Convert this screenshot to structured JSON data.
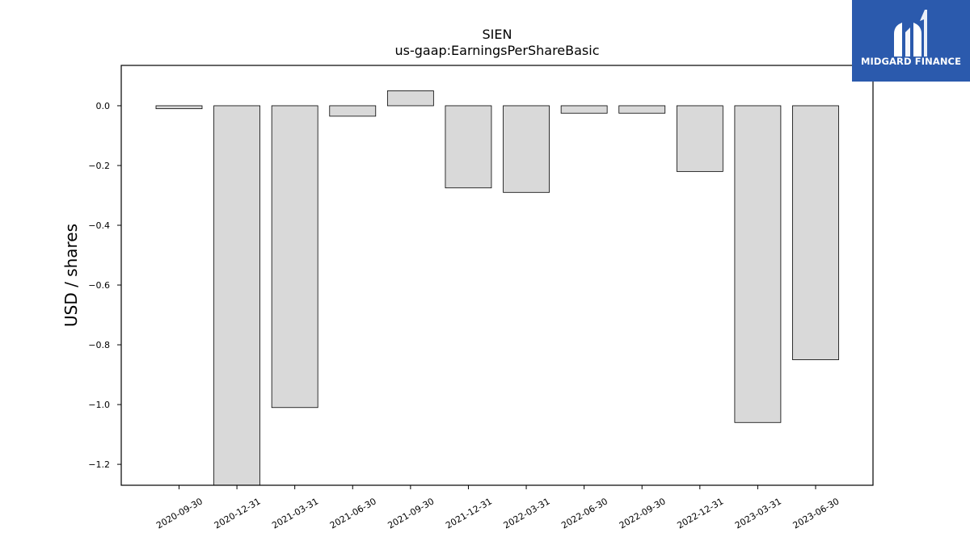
{
  "chart_data": {
    "type": "bar",
    "title": "SIEN",
    "subtitle": "us-gaap:EarningsPerShareBasic",
    "ylabel": "USD / shares",
    "xlabel": "",
    "categories": [
      "2020-09-30",
      "2020-12-31",
      "2021-03-31",
      "2021-06-30",
      "2021-09-30",
      "2021-12-31",
      "2022-03-31",
      "2022-06-30",
      "2022-09-30",
      "2022-12-31",
      "2023-03-31",
      "2023-06-30"
    ],
    "values": [
      -0.01,
      -1.27,
      -1.01,
      -0.035,
      0.05,
      -0.275,
      -0.29,
      -0.025,
      -0.025,
      -0.22,
      -1.06,
      -0.85
    ],
    "ylim": [
      -1.27,
      0.135
    ],
    "yticks": [
      0.0,
      -0.2,
      -0.4,
      -0.6,
      -0.8,
      -1.0,
      -1.2
    ],
    "ytick_labels": [
      "0.0",
      "−0.2",
      "−0.4",
      "−0.6",
      "−0.8",
      "−1.0",
      "−1.2"
    ],
    "bar_color": "#d9d9d9",
    "bar_edge_color": "#000000",
    "grid": false,
    "legend": "none"
  },
  "brand": {
    "name": "MIDGARD FINANCE",
    "color": "#2b5aad",
    "icon": "midgard-logo-icon"
  }
}
